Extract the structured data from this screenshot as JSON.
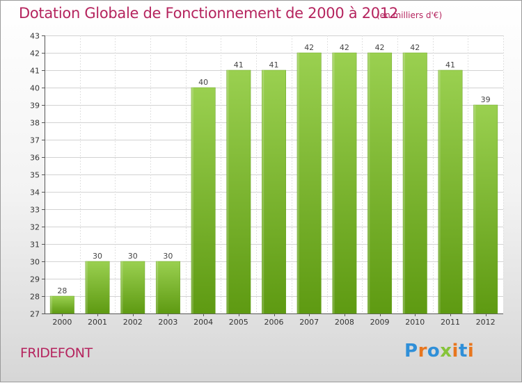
{
  "chart_data": {
    "type": "bar",
    "title": "Dotation Globale de Fonctionnement de 2000 à 2012",
    "subtitle": "(en milliers d'€)",
    "categories": [
      "2000",
      "2001",
      "2002",
      "2003",
      "2004",
      "2005",
      "2006",
      "2007",
      "2008",
      "2009",
      "2010",
      "2011",
      "2012"
    ],
    "values": [
      28,
      30,
      30,
      30,
      40,
      41,
      41,
      42,
      42,
      42,
      42,
      41,
      39
    ],
    "ylim": [
      27,
      43
    ],
    "yticks": [
      27,
      28,
      29,
      30,
      31,
      32,
      33,
      34,
      35,
      36,
      37,
      38,
      39,
      40,
      41,
      42,
      43
    ],
    "xlabel": "",
    "ylabel": "",
    "grid": true
  },
  "footer": {
    "city": "FRIDEFONT",
    "logo_letters": [
      "P",
      "r",
      "o",
      "x",
      "i",
      "t",
      "i"
    ]
  },
  "colors": {
    "title": "#b5245e",
    "bar_top": "#9ad050",
    "bar_bottom": "#5e9a12",
    "logo": [
      "#2f8fd8",
      "#e8761e",
      "#2f8fd8",
      "#86c43a",
      "#e8761e",
      "#2f8fd8",
      "#e8761e"
    ]
  }
}
